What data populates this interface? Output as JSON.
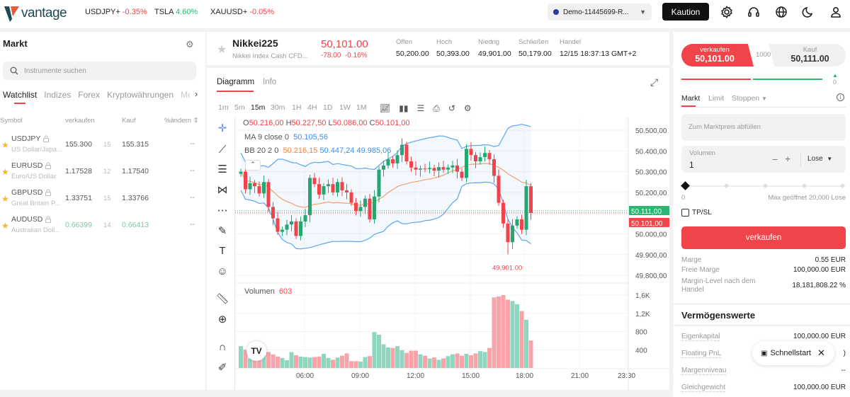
{
  "brand": {
    "name": "vantage"
  },
  "tickers": [
    {
      "symbol": "USDJPY+",
      "change": "-0.35%",
      "dir": "down"
    },
    {
      "symbol": "TSLA",
      "change": "4.60%",
      "dir": "up"
    },
    {
      "symbol": "XAUUSD+",
      "change": "-0.05%",
      "dir": "down"
    }
  ],
  "account": {
    "label": "Demo-11445699-R...",
    "deposit_label": "Kaution"
  },
  "header_icons": [
    "gear-icon",
    "headset-icon",
    "globe-icon",
    "moon-icon",
    "user-icon"
  ],
  "market": {
    "title": "Markt",
    "search_placeholder": "Instrumente suchen",
    "tabs": [
      "Watchlist",
      "Indizes",
      "Forex",
      "Kryptowährungen",
      "Me"
    ],
    "columns": [
      "Symbol",
      "verkaufen",
      "Kauf",
      "%ändern"
    ],
    "rows": [
      {
        "symbol": "USDJPY",
        "desc": "US Dollar/Japa...",
        "sell": "155.300",
        "spread": "15",
        "buy": "155.315",
        "change": "--",
        "highlight": false
      },
      {
        "symbol": "EURUSD",
        "desc": "Euro/US Dollar",
        "sell": "1.17528",
        "spread": "12",
        "buy": "1.17540",
        "change": "--",
        "highlight": false
      },
      {
        "symbol": "GBPUSD",
        "desc": "Great Britain P...",
        "sell": "1.33751",
        "spread": "15",
        "buy": "1.33766",
        "change": "--",
        "highlight": false
      },
      {
        "symbol": "AUDUSD",
        "desc": "Australian Doll...",
        "sell": "0.66399",
        "spread": "14",
        "buy": "0.66413",
        "change": "--",
        "highlight": true
      }
    ]
  },
  "instrument": {
    "name": "Nikkei225",
    "desc": "Nikkei Index Cash CFD...",
    "price": "50,101.00",
    "change": "-78.00",
    "change_pct": "-0.16%",
    "stats": [
      {
        "label": "Offen",
        "value": "50,200.00"
      },
      {
        "label": "Hoch",
        "value": "50,393.00"
      },
      {
        "label": "Niedrig",
        "value": "49,901.00"
      },
      {
        "label": "Schließen",
        "value": "50,179.00"
      },
      {
        "label": "Handel",
        "value": "12/15 18:37:13 GMT+2"
      }
    ]
  },
  "chart_tabs": [
    "Diagramm",
    "Info"
  ],
  "timeframes": [
    "1m",
    "5m",
    "15m",
    "30m",
    "1H",
    "4H",
    "1D",
    "1W",
    "1M"
  ],
  "active_timeframe": "15m",
  "legend": {
    "o_label": "O",
    "o": "50.216,00",
    "h_label": "H",
    "h": "50.227,50",
    "l_label": "L",
    "l": "50.086,00",
    "c_label": "C",
    "c": "50.101,00",
    "ma_label": "MA 9 close 0",
    "ma": "50.105,56",
    "bb_label": "BB 20 2 0",
    "bb_mid": "50.216,15",
    "bb_up": "50.447,24",
    "bb_low": "49.985,06",
    "vol_label": "Volumen",
    "vol": "603"
  },
  "chart_data": {
    "type": "candlestick",
    "x_start": "02:30",
    "interval": "15m",
    "closes": [
      50300,
      50215,
      50245,
      50230,
      50195,
      50250,
      50130,
      50075,
      50010,
      50020,
      50045,
      50060,
      49990,
      50060,
      50090,
      50270,
      50240,
      50190,
      50230,
      50240,
      50200,
      50250,
      50210,
      50200,
      50150,
      50110,
      50130,
      50170,
      50070,
      50180,
      50310,
      50330,
      50360,
      50340,
      50380,
      50430,
      50350,
      50320,
      50310,
      50315,
      50312,
      50318,
      50305,
      50322,
      50310,
      50320,
      50330,
      50300,
      50270,
      50410,
      50380,
      50350,
      50370,
      50390,
      50360,
      50280,
      50150,
      50050,
      49960,
      50040,
      50070,
      50020,
      50230,
      50101
    ],
    "volumes": [
      480,
      400,
      210,
      290,
      300,
      290,
      350,
      300,
      250,
      220,
      170,
      350,
      280,
      250,
      240,
      230,
      240,
      250,
      310,
      220,
      180,
      230,
      270,
      320,
      150,
      150,
      140,
      240,
      260,
      790,
      730,
      520,
      450,
      440,
      480,
      390,
      330,
      380,
      380,
      300,
      270,
      210,
      230,
      180,
      210,
      260,
      300,
      320,
      270,
      310,
      280,
      320,
      370,
      350,
      440,
      1550,
      1570,
      1600,
      1500,
      1470,
      1400,
      1250,
      1060,
      603
    ],
    "ylim": [
      49750,
      50550
    ],
    "price_ticks": [
      "50.500,00",
      "50.400,00",
      "50.300,00",
      "50.200,00",
      "50.000,00",
      "49.900,00",
      "49.800,00"
    ],
    "price_tick_values": [
      50500,
      50400,
      50300,
      50200,
      50000,
      49900,
      49800
    ],
    "vol_ticks": [
      "1,6K",
      "1,2K",
      "800",
      "400"
    ],
    "vol_tick_values": [
      1600,
      1200,
      800,
      400
    ],
    "x_ticks": [
      "06:00",
      "09:00",
      "12:00",
      "15:00",
      "18:00",
      "21:00",
      "23:30"
    ],
    "bid_tag": "50.111,00",
    "ask_tag": "50.101,00",
    "low_annotation": "49,901.00",
    "colors": {
      "up": "#26a671",
      "down": "#f0444a",
      "ma": "#f5a06a",
      "bb": "#5aa6f0"
    }
  },
  "order": {
    "sell_label": "verkaufen",
    "sell_price": "50,101.00",
    "spread": "1000",
    "buy_label": "Kauf",
    "buy_price": "50,111.00",
    "sentiment_value": "0",
    "tabs": [
      "Markt",
      "Limit",
      "Stoppen"
    ],
    "price_placeholder": "Zum Marktpreis abfüllen",
    "volume_label": "Volumen",
    "volume_value": "1",
    "unit": "Lose",
    "slider_min": "0",
    "slider_max": "Max geöffnet 20,000 Lose",
    "slider_value": 0,
    "tpsl_label": "TP/SL",
    "submit_label": "verkaufen",
    "summary": [
      {
        "k": "Marge",
        "v": "0.55 EUR"
      },
      {
        "k": "Freie Marge",
        "v": "100,000.00 EUR"
      },
      {
        "k": "Margin-Level nach dem Handel",
        "v": "18,181,808.22 %"
      }
    ]
  },
  "assets": {
    "title": "Vermögenswerte",
    "rows": [
      {
        "k": "Eigenkapital",
        "v": "100,000.00 EUR"
      },
      {
        "k": "Floating PnL",
        "v": ")"
      },
      {
        "k": "Margenniveau",
        "v": "--"
      },
      {
        "k": "Gleichgewicht",
        "v": "100,000.00 EUR"
      }
    ]
  },
  "quickstart": {
    "label": "Schnellstart"
  }
}
